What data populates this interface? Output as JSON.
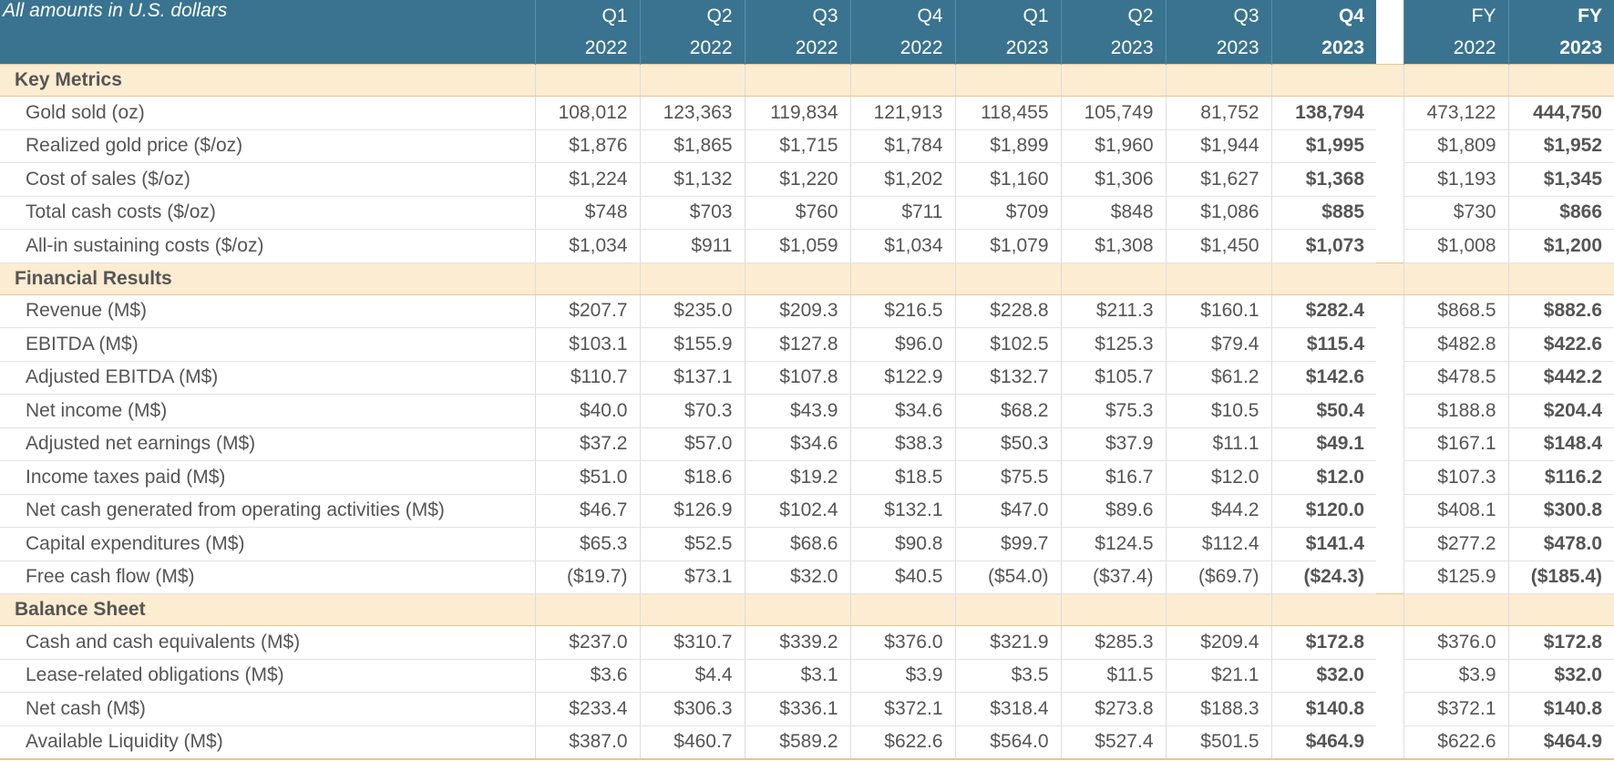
{
  "header": {
    "label": "All amounts in U.S. dollars",
    "columns": [
      {
        "top": "Q1",
        "bottom": "2022"
      },
      {
        "top": "Q2",
        "bottom": "2022"
      },
      {
        "top": "Q3",
        "bottom": "2022"
      },
      {
        "top": "Q4",
        "bottom": "2022"
      },
      {
        "top": "Q1",
        "bottom": "2023"
      },
      {
        "top": "Q2",
        "bottom": "2023"
      },
      {
        "top": "Q3",
        "bottom": "2023"
      },
      {
        "top": "Q4",
        "bottom": "2023"
      },
      {
        "top": "FY",
        "bottom": "2022"
      },
      {
        "top": "FY",
        "bottom": "2023"
      }
    ]
  },
  "sections": [
    {
      "title": "Key Metrics",
      "rows": [
        {
          "label": "Gold sold (oz)",
          "values": [
            "108,012",
            "123,363",
            "119,834",
            "121,913",
            "118,455",
            "105,749",
            "81,752",
            "138,794",
            "473,122",
            "444,750"
          ]
        },
        {
          "label": "Realized gold price ($/oz)",
          "values": [
            "$1,876",
            "$1,865",
            "$1,715",
            "$1,784",
            "$1,899",
            "$1,960",
            "$1,944",
            "$1,995",
            "$1,809",
            "$1,952"
          ]
        },
        {
          "label": "Cost of sales ($/oz)",
          "values": [
            "$1,224",
            "$1,132",
            "$1,220",
            "$1,202",
            "$1,160",
            "$1,306",
            "$1,627",
            "$1,368",
            "$1,193",
            "$1,345"
          ]
        },
        {
          "label": "Total cash costs ($/oz)",
          "values": [
            "$748",
            "$703",
            "$760",
            "$711",
            "$709",
            "$848",
            "$1,086",
            "$885",
            "$730",
            "$866"
          ]
        },
        {
          "label": "All-in sustaining costs ($/oz)",
          "values": [
            "$1,034",
            "$911",
            "$1,059",
            "$1,034",
            "$1,079",
            "$1,308",
            "$1,450",
            "$1,073",
            "$1,008",
            "$1,200"
          ]
        }
      ]
    },
    {
      "title": "Financial Results",
      "rows": [
        {
          "label": "Revenue (M$)",
          "values": [
            "$207.7",
            "$235.0",
            "$209.3",
            "$216.5",
            "$228.8",
            "$211.3",
            "$160.1",
            "$282.4",
            "$868.5",
            "$882.6"
          ]
        },
        {
          "label": "EBITDA (M$)",
          "values": [
            "$103.1",
            "$155.9",
            "$127.8",
            "$96.0",
            "$102.5",
            "$125.3",
            "$79.4",
            "$115.4",
            "$482.8",
            "$422.6"
          ]
        },
        {
          "label": "Adjusted EBITDA (M$)",
          "values": [
            "$110.7",
            "$137.1",
            "$107.8",
            "$122.9",
            "$132.7",
            "$105.7",
            "$61.2",
            "$142.6",
            "$478.5",
            "$442.2"
          ]
        },
        {
          "label": "Net income (M$)",
          "values": [
            "$40.0",
            "$70.3",
            "$43.9",
            "$34.6",
            "$68.2",
            "$75.3",
            "$10.5",
            "$50.4",
            "$188.8",
            "$204.4"
          ]
        },
        {
          "label": "Adjusted net earnings (M$)",
          "values": [
            "$37.2",
            "$57.0",
            "$34.6",
            "$38.3",
            "$50.3",
            "$37.9",
            "$11.1",
            "$49.1",
            "$167.1",
            "$148.4"
          ]
        },
        {
          "label": "Income taxes paid (M$)",
          "values": [
            "$51.0",
            "$18.6",
            "$19.2",
            "$18.5",
            "$75.5",
            "$16.7",
            "$12.0",
            "$12.0",
            "$107.3",
            "$116.2"
          ]
        },
        {
          "label": "Net cash generated from operating activities (M$)",
          "values": [
            "$46.7",
            "$126.9",
            "$102.4",
            "$132.1",
            "$47.0",
            "$89.6",
            "$44.2",
            "$120.0",
            "$408.1",
            "$300.8"
          ]
        },
        {
          "label": "Capital expenditures (M$)",
          "values": [
            "$65.3",
            "$52.5",
            "$68.6",
            "$90.8",
            "$99.7",
            "$124.5",
            "$112.4",
            "$141.4",
            "$277.2",
            "$478.0"
          ]
        },
        {
          "label": "Free cash flow (M$)",
          "values": [
            "($19.7)",
            "$73.1",
            "$32.0",
            "$40.5",
            "($54.0)",
            "($37.4)",
            "($69.7)",
            "($24.3)",
            "$125.9",
            "($185.4)"
          ]
        }
      ]
    },
    {
      "title": "Balance Sheet",
      "rows": [
        {
          "label": "Cash and cash equivalents (M$)",
          "values": [
            "$237.0",
            "$310.7",
            "$339.2",
            "$376.0",
            "$321.9",
            "$285.3",
            "$209.4",
            "$172.8",
            "$376.0",
            "$172.8"
          ]
        },
        {
          "label": "Lease-related obligations (M$)",
          "values": [
            "$3.6",
            "$4.4",
            "$3.1",
            "$3.9",
            "$3.5",
            "$11.5",
            "$21.1",
            "$32.0",
            "$3.9",
            "$32.0"
          ]
        },
        {
          "label": "Net cash (M$)",
          "values": [
            "$233.4",
            "$306.3",
            "$336.1",
            "$372.1",
            "$318.4",
            "$273.8",
            "$188.3",
            "$140.8",
            "$372.1",
            "$140.8"
          ]
        },
        {
          "label": "Available Liquidity (M$)",
          "values": [
            "$387.0",
            "$460.7",
            "$589.2",
            "$622.6",
            "$564.0",
            "$527.4",
            "$501.5",
            "$464.9",
            "$622.6",
            "$464.9"
          ]
        }
      ]
    }
  ]
}
